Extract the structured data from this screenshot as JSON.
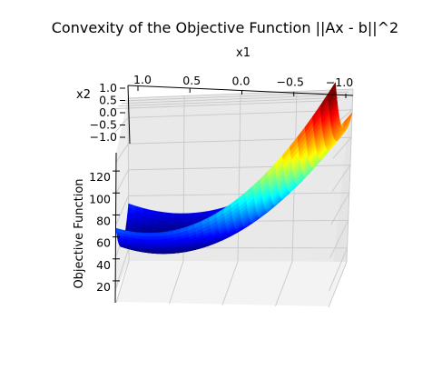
{
  "chart_data": {
    "type": "surface",
    "title": "Convexity of the Objective Function ||Ax - b||^2",
    "xlabel": "x1",
    "ylabel": "x2",
    "zlabel": "Objective Function",
    "xlim": [
      -1.0,
      1.0
    ],
    "ylim": [
      -1.0,
      1.0
    ],
    "zlim": [
      10,
      135
    ],
    "x_ticks": [
      {
        "value": 1.0,
        "label": "1.0"
      },
      {
        "value": 0.5,
        "label": "0.5"
      },
      {
        "value": 0.0,
        "label": "0.0"
      },
      {
        "value": -0.5,
        "label": "−0.5"
      },
      {
        "value": -1.0,
        "label": "−1.0"
      }
    ],
    "y_ticks": [
      {
        "value": 1.0,
        "label": "1.0"
      },
      {
        "value": 0.5,
        "label": "0.5"
      },
      {
        "value": 0.0,
        "label": "0.0"
      },
      {
        "value": -0.5,
        "label": "−0.5"
      },
      {
        "value": -1.0,
        "label": "−1.0"
      }
    ],
    "z_ticks": [
      {
        "value": 20,
        "label": "20"
      },
      {
        "value": 40,
        "label": "40"
      },
      {
        "value": 60,
        "label": "60"
      },
      {
        "value": 80,
        "label": "80"
      },
      {
        "value": 100,
        "label": "100"
      },
      {
        "value": 120,
        "label": "120"
      }
    ],
    "colormap": "jet",
    "z_min": 36,
    "z_max": 137,
    "grid": true,
    "view": {
      "elevation": 10,
      "azimuth": 90
    }
  }
}
